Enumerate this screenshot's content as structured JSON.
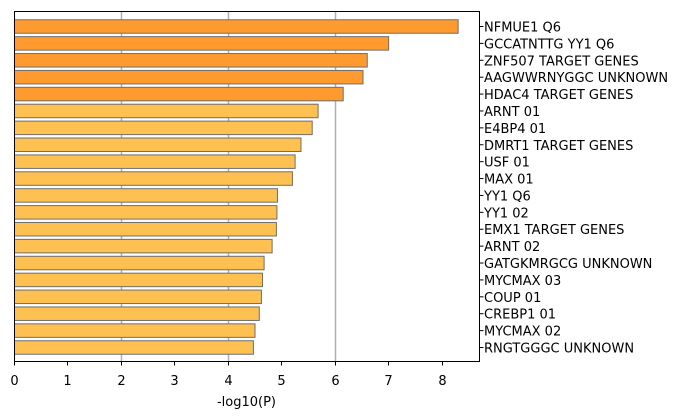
{
  "chart_data": {
    "type": "bar",
    "orientation": "horizontal",
    "title": "",
    "xlabel": "-log10(P)",
    "ylabel": "",
    "xlim": [
      0,
      8.7
    ],
    "xticks": [
      0,
      1,
      2,
      3,
      4,
      5,
      6,
      7,
      8
    ],
    "grid": "vertical lines at x = 2, 4, 6",
    "category_label_position": "right",
    "categories": [
      "NFMUE1 Q6",
      "GCCATNTTG YY1 Q6",
      "ZNF507 TARGET GENES",
      "AAGWWRNYGGC UNKNOWN",
      "HDAC4 TARGET GENES",
      "ARNT 01",
      "E4BP4 01",
      "DMRT1 TARGET GENES",
      "USF 01",
      "MAX 01",
      "YY1 Q6",
      "YY1 02",
      "EMX1 TARGET GENES",
      "ARNT 02",
      "GATGKMRGCG UNKNOWN",
      "MYCMAX 03",
      "COUP 01",
      "CREBP1 01",
      "MYCMAX 02",
      "RNGTGGGC UNKNOWN"
    ],
    "values": [
      8.3,
      7.0,
      6.6,
      6.52,
      6.15,
      5.68,
      5.57,
      5.36,
      5.25,
      5.2,
      4.92,
      4.91,
      4.9,
      4.82,
      4.67,
      4.64,
      4.62,
      4.58,
      4.5,
      4.47
    ],
    "colors": {
      "top": "#ff9a2e",
      "other": "#ffc052",
      "edge": "#6e6e6e",
      "grid": "#b0b0b0"
    },
    "top_count": 5
  }
}
